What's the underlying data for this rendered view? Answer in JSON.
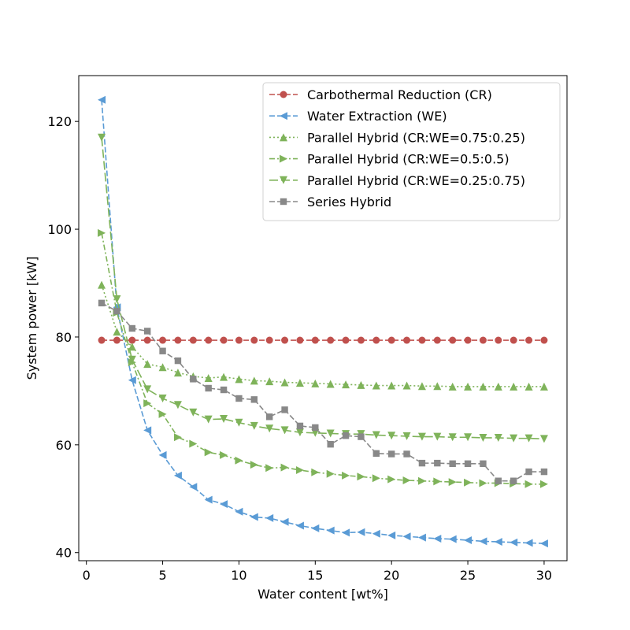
{
  "chart_data": {
    "type": "line",
    "xlabel": "Water content [wt%]",
    "ylabel": "System power [kW]",
    "xlim": [
      -0.5,
      31.5
    ],
    "ylim": [
      38.5,
      128.5
    ],
    "xticks": [
      0,
      5,
      10,
      15,
      20,
      25,
      30
    ],
    "yticks": [
      40,
      60,
      80,
      100,
      120
    ],
    "grid": false,
    "legend_position": "top-right",
    "x": [
      1,
      2,
      3,
      4,
      5,
      6,
      7,
      8,
      9,
      10,
      11,
      12,
      13,
      14,
      15,
      16,
      17,
      18,
      19,
      20,
      21,
      22,
      23,
      24,
      25,
      26,
      27,
      28,
      29,
      30
    ],
    "series": [
      {
        "name": "Carbothermal Reduction (CR)",
        "color": "#c0504d",
        "marker": "circle",
        "dash": "dashed",
        "values": [
          79.4,
          79.4,
          79.4,
          79.4,
          79.4,
          79.4,
          79.4,
          79.4,
          79.4,
          79.4,
          79.4,
          79.4,
          79.4,
          79.4,
          79.4,
          79.4,
          79.4,
          79.4,
          79.4,
          79.4,
          79.4,
          79.4,
          79.4,
          79.4,
          79.4,
          79.4,
          79.4,
          79.4,
          79.4,
          79.4
        ]
      },
      {
        "name": "Water Extraction (WE)",
        "color": "#5a9bd5",
        "marker": "triangle-left",
        "dash": "dashed",
        "values": [
          124.0,
          85.5,
          72.0,
          62.7,
          58.1,
          54.3,
          52.2,
          49.8,
          49.0,
          47.6,
          46.6,
          46.4,
          45.7,
          45.0,
          44.5,
          44.1,
          43.7,
          43.8,
          43.5,
          43.2,
          43.0,
          42.8,
          42.6,
          42.5,
          42.3,
          42.1,
          42.0,
          41.9,
          41.8,
          41.7
        ]
      },
      {
        "name": "Parallel Hybrid (CR:WE=0.75:0.25)",
        "color": "#7fb35a",
        "marker": "triangle-up",
        "dash": "dotted",
        "values": [
          89.7,
          81.0,
          78.2,
          75.0,
          74.4,
          73.4,
          72.7,
          72.4,
          72.6,
          72.2,
          71.9,
          71.8,
          71.6,
          71.5,
          71.4,
          71.3,
          71.2,
          71.1,
          71.0,
          71.0,
          71.0,
          70.9,
          70.9,
          70.8,
          70.8,
          70.8,
          70.8,
          70.8,
          70.8,
          70.8
        ]
      },
      {
        "name": "Parallel Hybrid (CR:WE=0.5:0.5)",
        "color": "#7fb35a",
        "marker": "triangle-right",
        "dash": "dashdot",
        "values": [
          99.3,
          84.5,
          75.3,
          67.7,
          65.7,
          61.4,
          60.2,
          58.6,
          58.1,
          57.1,
          56.3,
          55.7,
          55.8,
          55.3,
          54.9,
          54.6,
          54.3,
          54.1,
          53.8,
          53.6,
          53.4,
          53.3,
          53.2,
          53.1,
          53.0,
          52.9,
          52.9,
          52.8,
          52.7,
          52.7
        ]
      },
      {
        "name": "Parallel Hybrid (CR:WE=0.25:0.75)",
        "color": "#7fb35a",
        "marker": "triangle-down",
        "dash": "longdash",
        "values": [
          117.0,
          87.0,
          75.8,
          70.3,
          68.6,
          67.4,
          66.0,
          64.7,
          64.8,
          64.1,
          63.5,
          63.0,
          62.7,
          62.3,
          62.2,
          62.1,
          62.0,
          62.0,
          61.8,
          61.7,
          61.6,
          61.5,
          61.5,
          61.4,
          61.4,
          61.3,
          61.3,
          61.2,
          61.2,
          61.1
        ]
      },
      {
        "name": "Series Hybrid",
        "color": "#888888",
        "marker": "square",
        "dash": "dashed",
        "values": [
          86.3,
          84.8,
          81.6,
          81.1,
          77.4,
          75.6,
          72.2,
          70.5,
          70.2,
          68.6,
          68.4,
          65.2,
          66.5,
          63.5,
          63.2,
          60.1,
          61.7,
          61.5,
          58.4,
          58.3,
          58.3,
          56.6,
          56.6,
          56.5,
          56.5,
          56.5,
          53.3,
          53.3,
          55.0,
          55.0
        ]
      }
    ]
  }
}
